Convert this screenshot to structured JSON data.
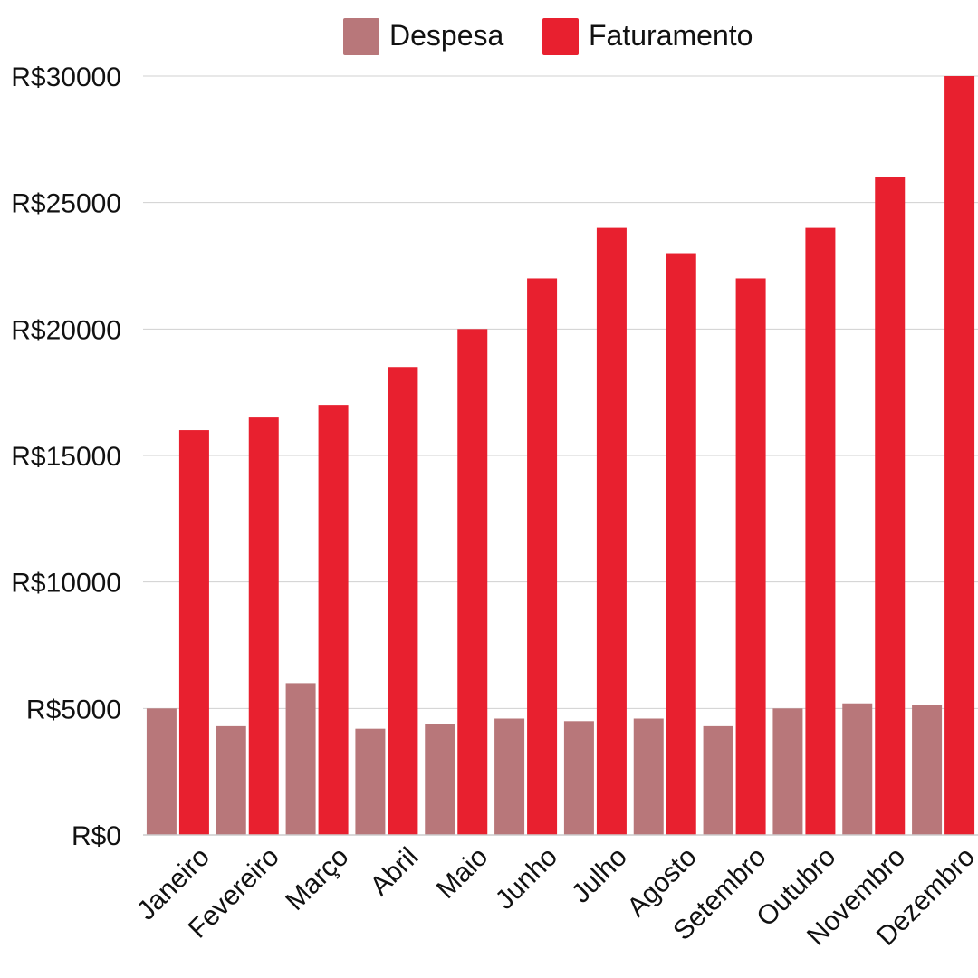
{
  "chart_data": {
    "type": "bar",
    "categories": [
      "Janeiro",
      "Fevereiro",
      "Março",
      "Abril",
      "Maio",
      "Junho",
      "Julho",
      "Agosto",
      "Setembro",
      "Outubro",
      "Novembro",
      "Dezembro"
    ],
    "series": [
      {
        "name": "Despesa",
        "color": "#b8777a",
        "values": [
          5000,
          4300,
          6000,
          4200,
          4400,
          4600,
          4500,
          4600,
          4300,
          5000,
          5200,
          5150
        ]
      },
      {
        "name": "Faturamento",
        "color": "#e8202f",
        "values": [
          16000,
          16500,
          17000,
          18500,
          20000,
          22000,
          24000,
          23000,
          22000,
          24000,
          26000,
          30000
        ]
      }
    ],
    "y_ticks": [
      0,
      5000,
      10000,
      15000,
      20000,
      25000,
      30000
    ],
    "y_tick_labels": [
      "R$0",
      "R$5000",
      "R$10000",
      "R$15000",
      "R$20000",
      "R$25000",
      "R$30000"
    ],
    "ylim": [
      0,
      30000
    ],
    "grid": true,
    "legend_position": "top-center"
  }
}
